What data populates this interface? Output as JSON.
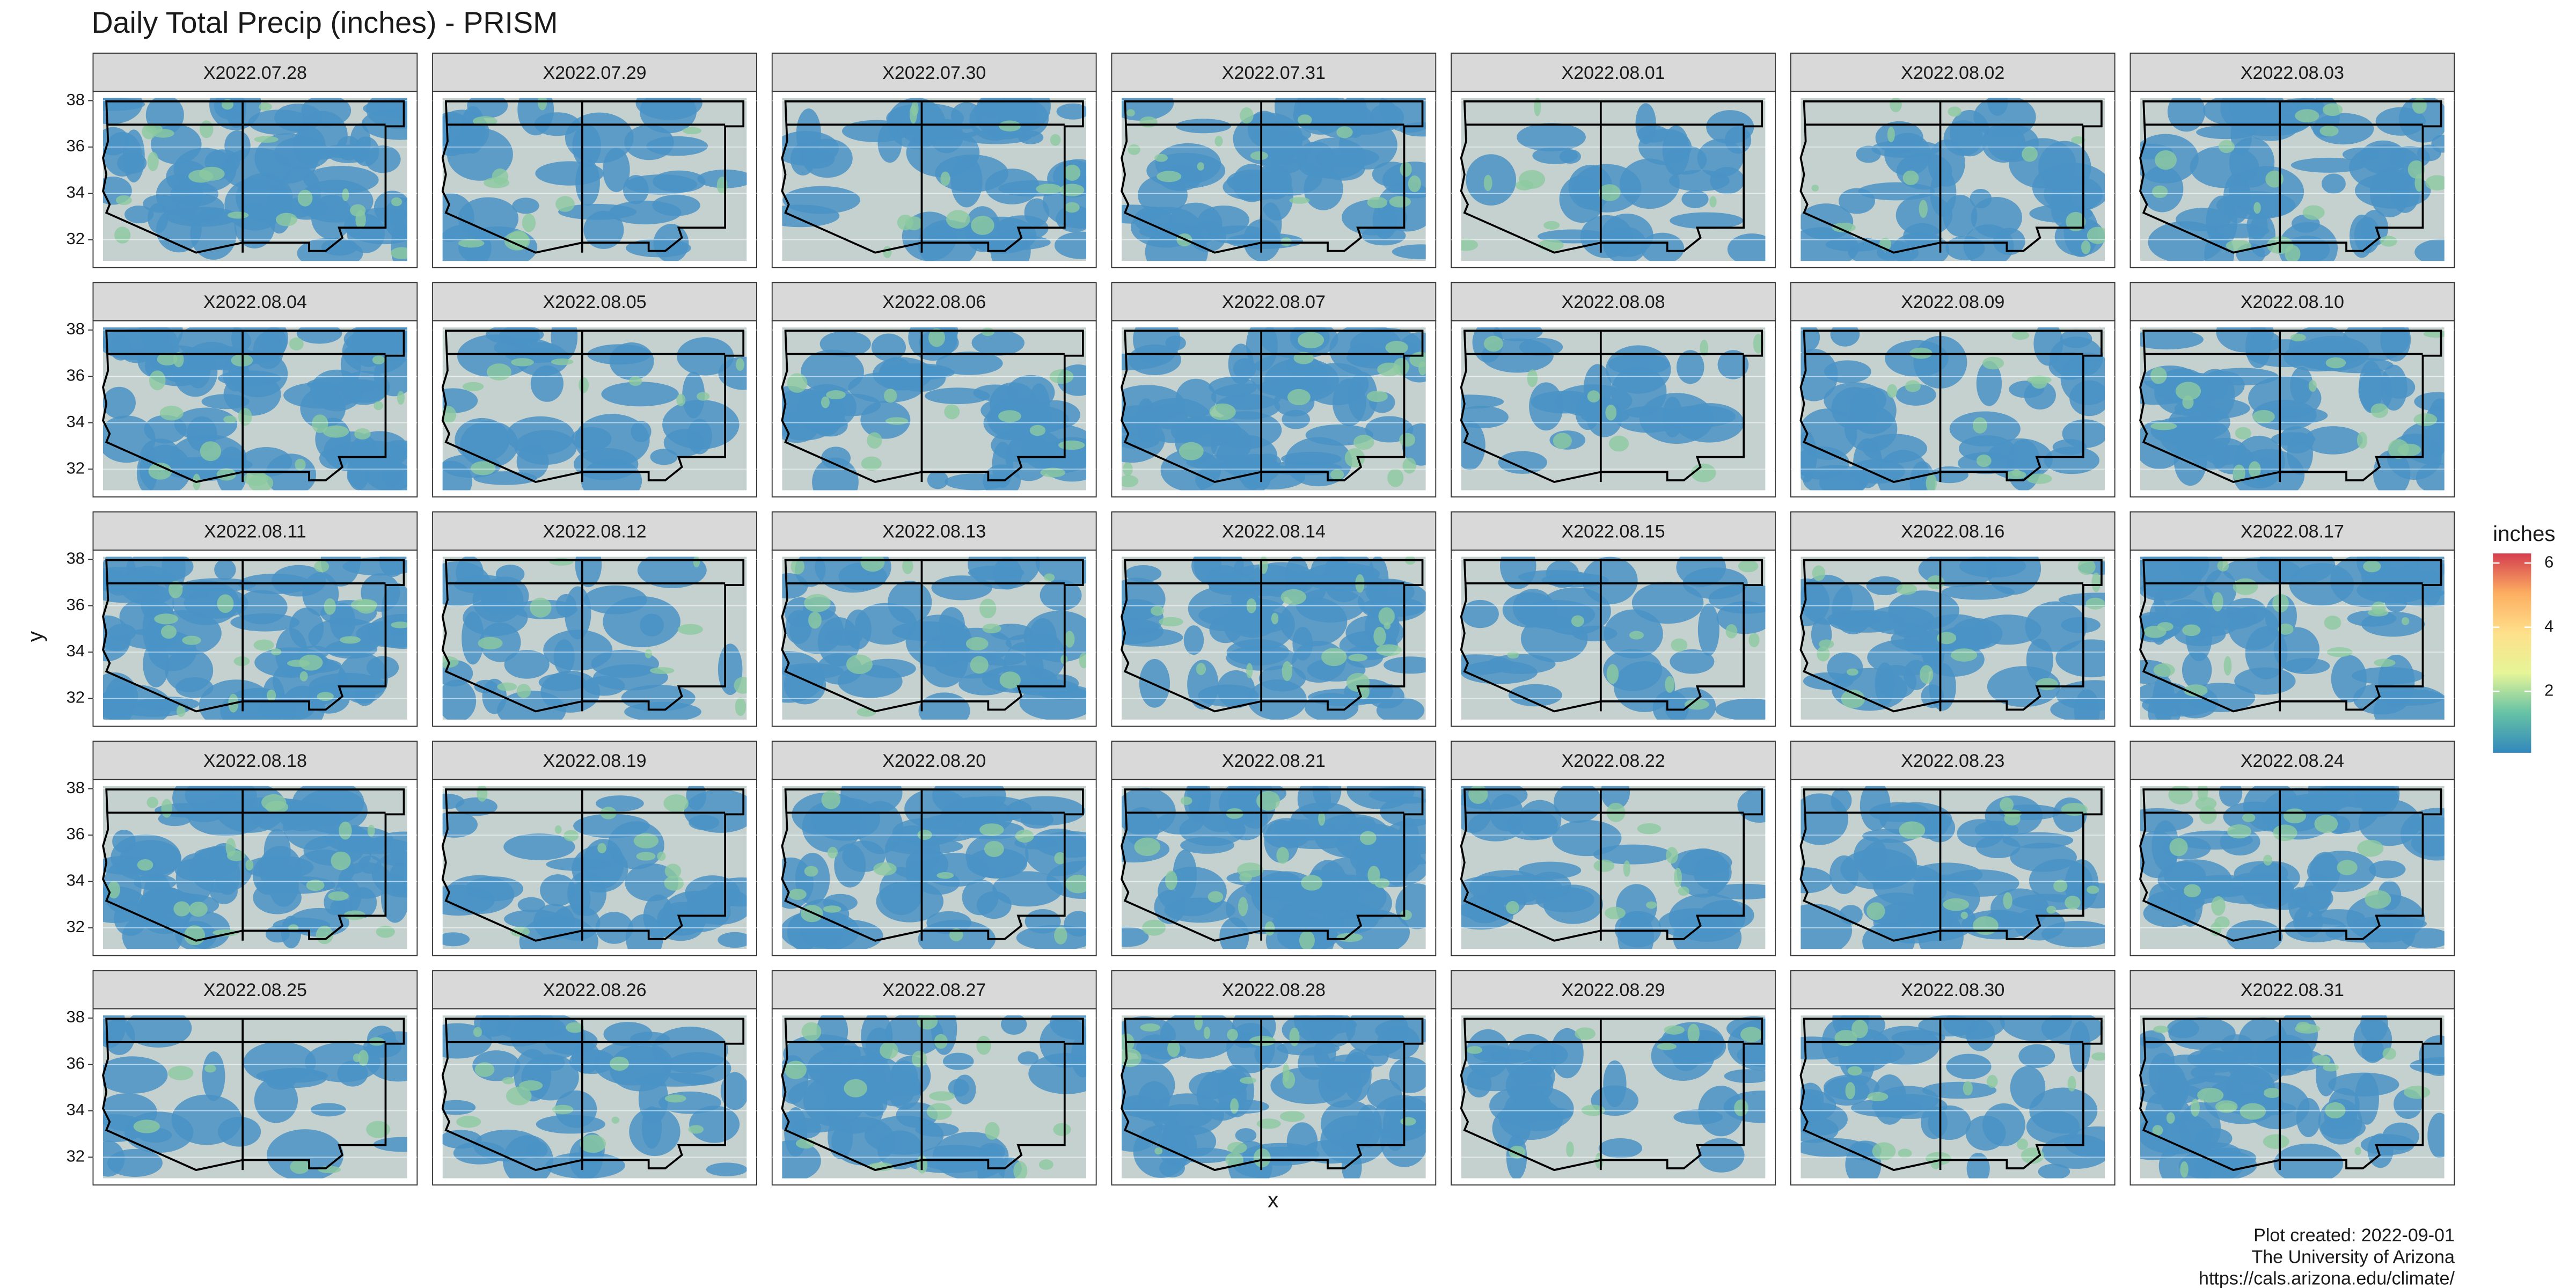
{
  "chart_data": {
    "type": "raster-facets",
    "title": "Daily Total Precip (inches) - PRISM",
    "facets": [
      "X2022.07.28",
      "X2022.07.29",
      "X2022.07.30",
      "X2022.07.31",
      "X2022.08.01",
      "X2022.08.02",
      "X2022.08.03",
      "X2022.08.04",
      "X2022.08.05",
      "X2022.08.06",
      "X2022.08.07",
      "X2022.08.08",
      "X2022.08.09",
      "X2022.08.10",
      "X2022.08.11",
      "X2022.08.12",
      "X2022.08.13",
      "X2022.08.14",
      "X2022.08.15",
      "X2022.08.16",
      "X2022.08.17",
      "X2022.08.18",
      "X2022.08.19",
      "X2022.08.20",
      "X2022.08.21",
      "X2022.08.22",
      "X2022.08.23",
      "X2022.08.24",
      "X2022.08.25",
      "X2022.08.26",
      "X2022.08.27",
      "X2022.08.28",
      "X2022.08.29",
      "X2022.08.30",
      "X2022.08.31"
    ],
    "x_label": "x",
    "y_label": "y",
    "ylim": [
      30.8,
      38.4
    ],
    "yticks": [
      32,
      34,
      36,
      38
    ],
    "grid": true,
    "panel_color": "#c5d1ce",
    "legend": {
      "title": "inches",
      "position": "right",
      "colors": [
        "#3288bd",
        "#66c2a5",
        "#e6f598",
        "#fee08b",
        "#fdae61",
        "#d53e4f"
      ],
      "lim": [
        0.08,
        6.3
      ],
      "ticks": [
        2,
        4,
        6
      ]
    },
    "caption": [
      "Plot created: 2022-09-01",
      "The University of Arizona",
      "https://cals.arizona.edu/climate/"
    ]
  }
}
